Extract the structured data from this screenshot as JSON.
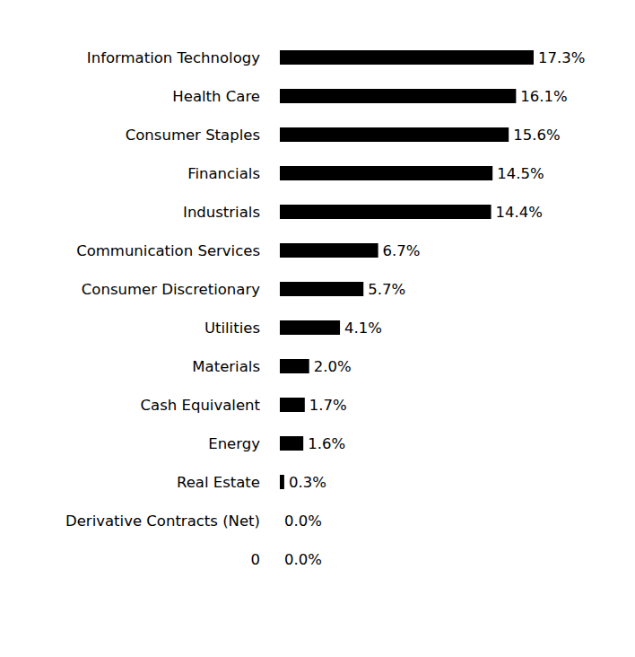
{
  "chart_data": {
    "type": "bar",
    "orientation": "horizontal",
    "categories": [
      "Information Technology",
      "Health Care",
      "Consumer Staples",
      "Financials",
      "Industrials",
      "Communication Services",
      "Consumer Discretionary",
      "Utilities",
      "Materials",
      "Cash Equivalent",
      "Energy",
      "Real Estate",
      "Derivative Contracts (Net)",
      "0"
    ],
    "values": [
      17.3,
      16.1,
      15.6,
      14.5,
      14.4,
      6.7,
      5.7,
      4.1,
      2.0,
      1.7,
      1.6,
      0.3,
      0.0,
      0.0
    ],
    "value_labels": [
      "17.3%",
      "16.1%",
      "15.6%",
      "14.5%",
      "14.4%",
      "6.7%",
      "5.7%",
      "4.1%",
      "2.0%",
      "1.7%",
      "1.6%",
      "0.3%",
      "0.0%",
      "0.0%"
    ],
    "color": "#000000",
    "xlim": [
      0,
      17.3
    ],
    "data_labels": true,
    "tick_labels": "y",
    "grid": false
  }
}
